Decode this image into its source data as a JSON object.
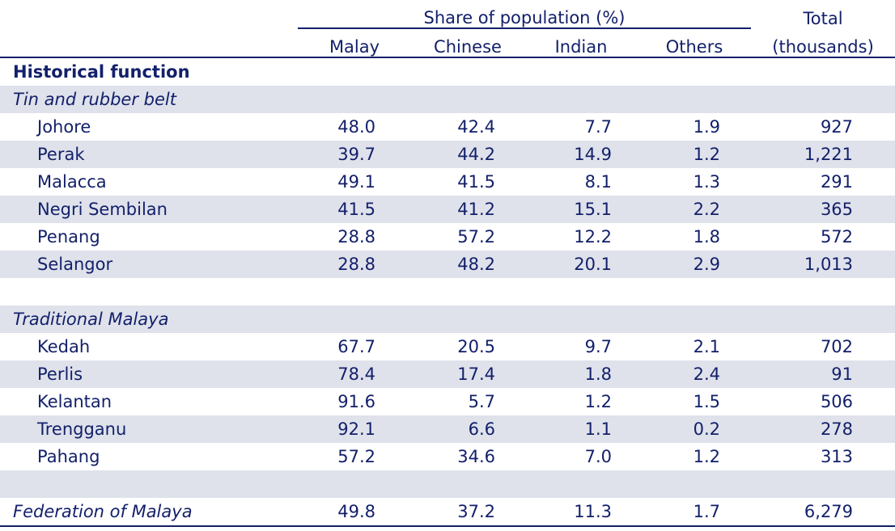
{
  "header": {
    "group_label": "Share of population (%)",
    "total_label_line1": "Total",
    "total_label_line2": "(thousands)",
    "columns": [
      "Malay",
      "Chinese",
      "Indian",
      "Others"
    ]
  },
  "section_title": "Historical function",
  "groups": [
    {
      "label": "Tin and rubber belt",
      "rows": [
        {
          "name": "Johore",
          "malay": "48.0",
          "chinese": "42.4",
          "indian": "7.7",
          "others": "1.9",
          "total": "927"
        },
        {
          "name": "Perak",
          "malay": "39.7",
          "chinese": "44.2",
          "indian": "14.9",
          "others": "1.2",
          "total": "1,221"
        },
        {
          "name": "Malacca",
          "malay": "49.1",
          "chinese": "41.5",
          "indian": "8.1",
          "others": "1.3",
          "total": "291"
        },
        {
          "name": "Negri Sembilan",
          "malay": "41.5",
          "chinese": "41.2",
          "indian": "15.1",
          "others": "2.2",
          "total": "365"
        },
        {
          "name": "Penang",
          "malay": "28.8",
          "chinese": "57.2",
          "indian": "12.2",
          "others": "1.8",
          "total": "572"
        },
        {
          "name": "Selangor",
          "malay": "28.8",
          "chinese": "48.2",
          "indian": "20.1",
          "others": "2.9",
          "total": "1,013"
        }
      ]
    },
    {
      "label": "Traditional Malaya",
      "rows": [
        {
          "name": "Kedah",
          "malay": "67.7",
          "chinese": "20.5",
          "indian": "9.7",
          "others": "2.1",
          "total": "702"
        },
        {
          "name": "Perlis",
          "malay": "78.4",
          "chinese": "17.4",
          "indian": "1.8",
          "others": "2.4",
          "total": "91"
        },
        {
          "name": "Kelantan",
          "malay": "91.6",
          "chinese": "5.7",
          "indian": "1.2",
          "others": "1.5",
          "total": "506"
        },
        {
          "name": "Trengganu",
          "malay": "92.1",
          "chinese": "6.6",
          "indian": "1.1",
          "others": "0.2",
          "total": "278"
        },
        {
          "name": "Pahang",
          "malay": "57.2",
          "chinese": "34.6",
          "indian": "7.0",
          "others": "1.2",
          "total": "313"
        }
      ]
    }
  ],
  "federation": {
    "name": "Federation of Malaya",
    "malay": "49.8",
    "chinese": "37.2",
    "indian": "11.3",
    "others": "1.7",
    "total": "6,279"
  },
  "colors": {
    "text": "#13206a",
    "band": "#dfe2eb"
  }
}
